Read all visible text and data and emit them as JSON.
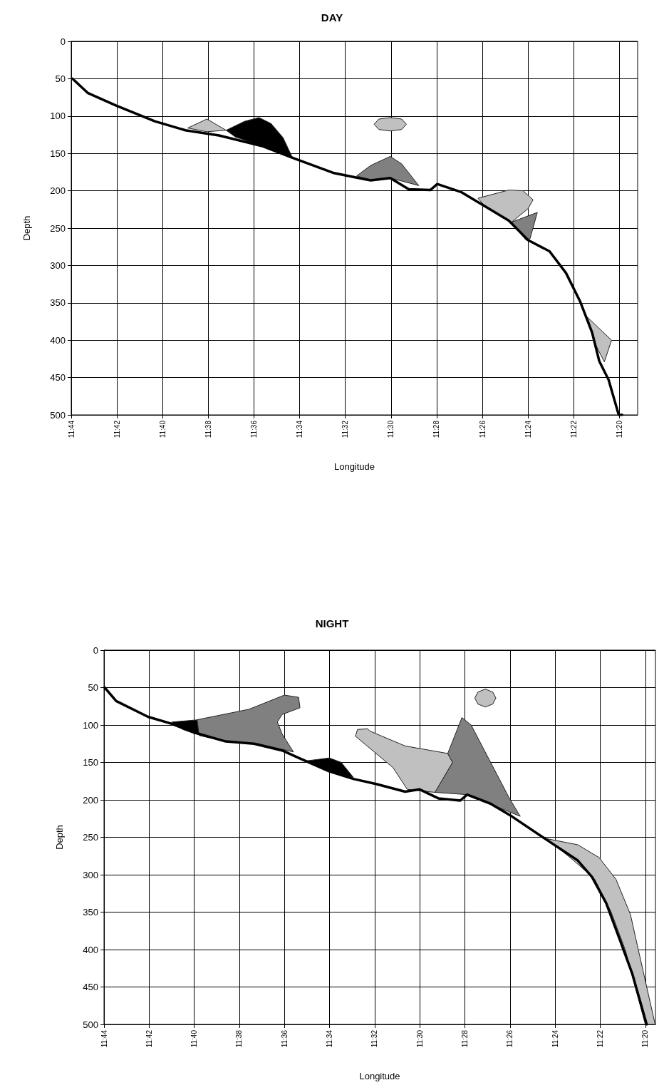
{
  "chart_data": [
    {
      "type": "line",
      "title": "DAY",
      "xlabel": "Longitude",
      "ylabel": "Depth",
      "xlim": [
        11.7333,
        11.32
      ],
      "ylim": [
        500,
        0
      ],
      "xticks": [
        {
          "value": 11.7333,
          "label": "11:44"
        },
        {
          "value": 11.7,
          "label": "11:42"
        },
        {
          "value": 11.6667,
          "label": "11:40"
        },
        {
          "value": 11.6333,
          "label": "11:38"
        },
        {
          "value": 11.6,
          "label": "11:36"
        },
        {
          "value": 11.5667,
          "label": "11:34"
        },
        {
          "value": 11.5333,
          "label": "11:32"
        },
        {
          "value": 11.5,
          "label": "11:30"
        },
        {
          "value": 11.4667,
          "label": "11:28"
        },
        {
          "value": 11.4333,
          "label": "11:26"
        },
        {
          "value": 11.4,
          "label": "11:24"
        },
        {
          "value": 11.3667,
          "label": "11:22"
        },
        {
          "value": 11.3333,
          "label": "11:20"
        }
      ],
      "yticks": [
        0,
        50,
        100,
        150,
        200,
        250,
        300,
        350,
        400,
        450,
        500
      ],
      "grid": true,
      "marker": "none",
      "series": [
        {
          "type": "area",
          "color": "#c0c0c0",
          "x": [
            11.6483,
            11.6343,
            11.6203,
            11.6343
          ],
          "values": [
            116,
            104,
            119,
            121
          ]
        },
        {
          "type": "area",
          "color": "#000000",
          "x": [
            11.6203,
            11.6068,
            11.5963,
            11.5875,
            11.5787,
            11.5718,
            11.5943,
            11.6135
          ],
          "values": [
            119,
            107,
            102,
            110,
            129,
            156,
            140,
            128
          ]
        },
        {
          "type": "area",
          "color": "#c0c0c0",
          "x": [
            11.5123,
            11.5088,
            11.5005,
            11.4922,
            11.4887,
            11.4922,
            11.5005,
            11.5088
          ],
          "values": [
            111,
            104,
            102,
            104,
            111,
            118,
            120,
            118
          ]
        },
        {
          "type": "area",
          "color": "#808080",
          "x": [
            11.525,
            11.5147,
            11.5005,
            11.4922,
            11.4797,
            11.5005,
            11.5147
          ],
          "values": [
            180,
            166,
            154,
            164,
            193,
            183,
            186
          ]
        },
        {
          "type": "area",
          "color": "#c0c0c0",
          "x": [
            11.4365,
            11.414,
            11.4037,
            11.3963,
            11.4,
            11.412,
            11.4313
          ],
          "values": [
            210,
            199,
            200,
            212,
            224,
            242,
            221
          ]
        },
        {
          "type": "area",
          "color": "#808080",
          "x": [
            11.412,
            11.3932,
            11.3985,
            11.4015
          ],
          "values": [
            242,
            229,
            264,
            266
          ]
        },
        {
          "type": "area",
          "color": "#c0c0c0",
          "x": [
            11.3568,
            11.339,
            11.3443,
            11.3515,
            11.3532
          ],
          "values": [
            369,
            400,
            429,
            403,
            388
          ]
        },
        {
          "type": "line",
          "color": "#000000",
          "x": [
            11.7323,
            11.7213,
            11.7005,
            11.6723,
            11.65,
            11.6255,
            11.5943,
            11.5718,
            11.5422,
            11.5235,
            11.5147,
            11.5005,
            11.487,
            11.4713,
            11.4662,
            11.4485,
            11.4313,
            11.414,
            11.4,
            11.3843,
            11.3723,
            11.362,
            11.3532,
            11.348,
            11.3412,
            11.3338,
            11.3313
          ],
          "values": [
            50,
            69,
            86,
            107,
            119,
            126,
            140,
            156,
            176,
            183,
            186,
            183,
            198,
            199,
            191,
            202,
            221,
            240,
            266,
            281,
            310,
            348,
            390,
            428,
            453,
            500,
            500
          ]
        }
      ]
    },
    {
      "type": "line",
      "title": "NIGHT",
      "xlabel": "Longitude",
      "ylabel": "Depth",
      "xlim": [
        11.7333,
        11.3258
      ],
      "ylim": [
        500,
        0
      ],
      "xticks": [
        {
          "value": 11.7333,
          "label": "11:44"
        },
        {
          "value": 11.7,
          "label": "11:42"
        },
        {
          "value": 11.6667,
          "label": "11:40"
        },
        {
          "value": 11.6333,
          "label": "11:38"
        },
        {
          "value": 11.6,
          "label": "11:36"
        },
        {
          "value": 11.5667,
          "label": "11:34"
        },
        {
          "value": 11.5333,
          "label": "11:32"
        },
        {
          "value": 11.5,
          "label": "11:30"
        },
        {
          "value": 11.4667,
          "label": "11:28"
        },
        {
          "value": 11.4333,
          "label": "11:26"
        },
        {
          "value": 11.4,
          "label": "11:24"
        },
        {
          "value": 11.3667,
          "label": "11:22"
        },
        {
          "value": 11.3333,
          "label": "11:20"
        }
      ],
      "yticks": [
        0,
        50,
        100,
        150,
        200,
        250,
        300,
        350,
        400,
        450,
        500
      ],
      "grid": true,
      "marker": "none",
      "series": [
        {
          "type": "area",
          "color": "#000000",
          "x": [
            11.6833,
            11.6633,
            11.6633,
            11.675
          ],
          "values": [
            96,
            93,
            113,
            106
          ]
        },
        {
          "type": "area",
          "color": "#808080",
          "x": [
            11.6645,
            11.6262,
            11.6,
            11.5895,
            11.5885,
            11.6017,
            11.6052,
            11.6017,
            11.5933,
            11.6195,
            11.6433,
            11.663
          ],
          "values": [
            93,
            79,
            60,
            63,
            77,
            86,
            96,
            112,
            136,
            125,
            122,
            114
          ]
        },
        {
          "type": "area",
          "color": "#000000",
          "x": [
            11.5843,
            11.5667,
            11.558,
            11.549,
            11.5667
          ],
          "values": [
            148,
            144,
            150,
            170,
            162
          ]
        },
        {
          "type": "area",
          "color": "#c0c0c0",
          "x": [
            11.546,
            11.5385,
            11.537,
            11.5108,
            11.4793,
            11.4757,
            11.4887,
            11.5092,
            11.5197,
            11.5475
          ],
          "values": [
            106,
            105,
            108,
            128,
            138,
            150,
            190,
            186,
            157,
            115
          ]
        },
        {
          "type": "area",
          "color": "#808080",
          "x": [
            11.4793,
            11.4688,
            11.462,
            11.4337,
            11.4257,
            11.465,
            11.4887,
            11.4757
          ],
          "values": [
            138,
            90,
            100,
            198,
            222,
            193,
            190,
            150
          ]
        },
        {
          "type": "area",
          "color": "#c0c0c0",
          "x": [
            11.4593,
            11.457,
            11.4515,
            11.446,
            11.4437,
            11.446,
            11.4515,
            11.457
          ],
          "values": [
            64,
            56,
            52,
            56,
            64,
            72,
            76,
            72
          ]
        },
        {
          "type": "area",
          "color": "#c0c0c0",
          "x": [
            11.4058,
            11.3832,
            11.3675,
            11.355,
            11.3443,
            11.3375,
            11.326,
            11.3333,
            11.348,
            11.3585,
            11.3707,
            11.3863
          ],
          "values": [
            252,
            260,
            277,
            306,
            353,
            408,
            500,
            500,
            401,
            350,
            306,
            281
          ]
        },
        {
          "type": "line",
          "color": "#000000",
          "x": [
            11.7328,
            11.7243,
            11.7008,
            11.684,
            11.6667,
            11.6433,
            11.6225,
            11.6017,
            11.5895,
            11.5667,
            11.549,
            11.5317,
            11.5108,
            11.5,
            11.4862,
            11.47,
            11.465,
            11.4478,
            11.432,
            11.4073,
            11.3832,
            11.3727,
            11.3622,
            11.3517,
            11.3428,
            11.3323
          ],
          "values": [
            50,
            68,
            89,
            98,
            110,
            122,
            125,
            134,
            144,
            162,
            172,
            179,
            189,
            186,
            198,
            201,
            193,
            205,
            222,
            252,
            281,
            303,
            338,
            389,
            433,
            500
          ]
        }
      ]
    }
  ]
}
